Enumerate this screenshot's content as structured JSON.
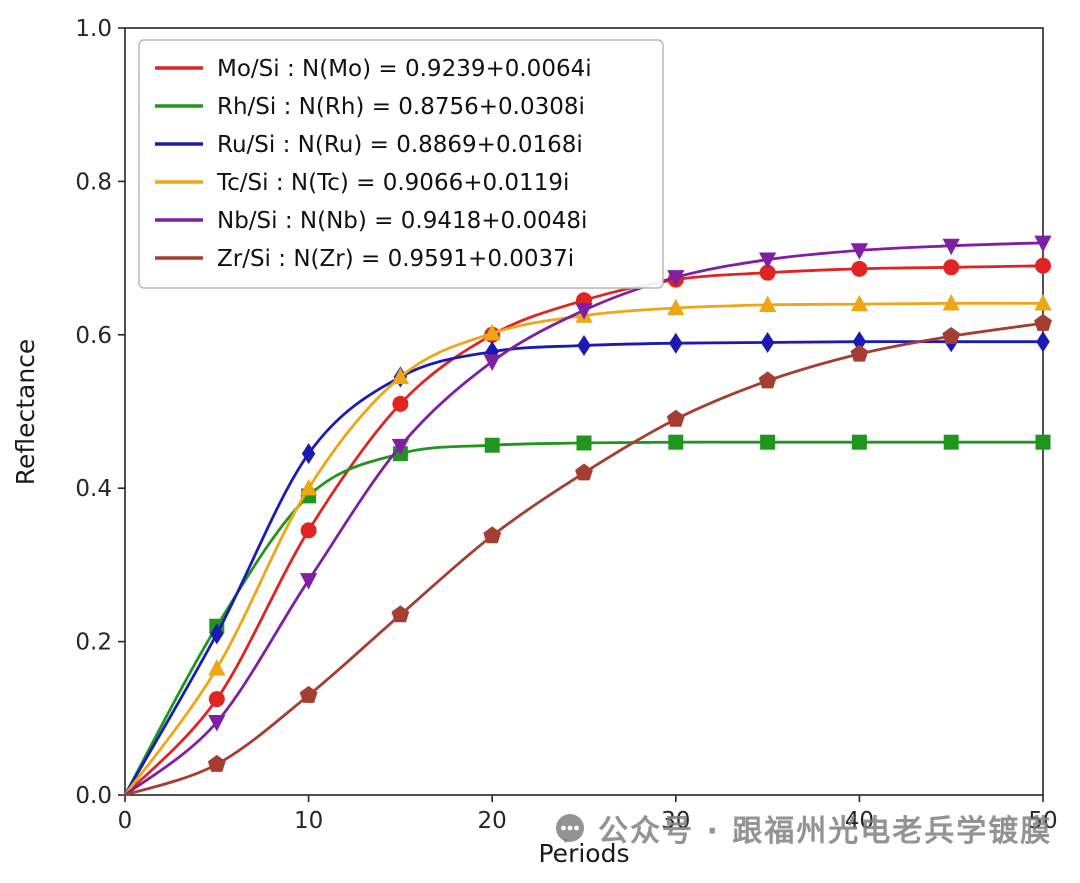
{
  "chart_data": {
    "type": "line",
    "title": "",
    "xlabel": "Periods",
    "ylabel": "Reflectance",
    "xlim": [
      0,
      50
    ],
    "ylim": [
      0.0,
      1.0
    ],
    "xticks": [
      "0",
      "10",
      "20",
      "30",
      "40",
      "50"
    ],
    "xtick_values": [
      0,
      10,
      20,
      30,
      40,
      50
    ],
    "yticks": [
      "0.0",
      "0.2",
      "0.4",
      "0.6",
      "0.8",
      "1.0"
    ],
    "ytick_values": [
      0.0,
      0.2,
      0.4,
      0.6,
      0.8,
      1.0
    ],
    "grid": false,
    "legend_position": "upper left",
    "x": [
      0,
      5,
      10,
      15,
      20,
      25,
      30,
      35,
      40,
      45,
      50
    ],
    "series": [
      {
        "name": "Mo/Si : N(Mo) = 0.9239+0.0064i",
        "color": "#e02421",
        "marker": "circle",
        "values": [
          0.0,
          0.125,
          0.345,
          0.51,
          0.6,
          0.645,
          0.672,
          0.681,
          0.686,
          0.688,
          0.69
        ]
      },
      {
        "name": "Rh/Si : N(Rh) = 0.8756+0.0308i",
        "color": "#21961f",
        "marker": "square",
        "values": [
          0.0,
          0.22,
          0.39,
          0.445,
          0.456,
          0.459,
          0.46,
          0.46,
          0.46,
          0.46,
          0.46
        ]
      },
      {
        "name": "Ru/Si : N(Ru) = 0.8869+0.0168i",
        "color": "#1b1bb3",
        "marker": "diamond",
        "values": [
          0.0,
          0.21,
          0.445,
          0.545,
          0.578,
          0.586,
          0.589,
          0.59,
          0.591,
          0.591,
          0.591
        ]
      },
      {
        "name": "Tc/Si : N(Tc) = 0.9066+0.0119i",
        "color": "#eda615",
        "marker": "triangle-up",
        "values": [
          0.0,
          0.165,
          0.4,
          0.545,
          0.602,
          0.625,
          0.635,
          0.639,
          0.64,
          0.641,
          0.641
        ]
      },
      {
        "name": "Nb/Si : N(Nb) = 0.9418+0.0048i",
        "color": "#7f1fa2",
        "marker": "triangle-down",
        "values": [
          0.0,
          0.095,
          0.28,
          0.455,
          0.565,
          0.632,
          0.675,
          0.698,
          0.71,
          0.716,
          0.72
        ]
      },
      {
        "name": "Zr/Si : N(Zr) = 0.9591+0.0037i",
        "color": "#a53e32",
        "marker": "pentagon",
        "values": [
          0.0,
          0.04,
          0.13,
          0.235,
          0.338,
          0.42,
          0.49,
          0.54,
          0.575,
          0.598,
          0.615
        ]
      }
    ]
  },
  "watermark": {
    "icon": "wechat-official-account-icon",
    "text": "公众号 · 跟福州光电老兵学镀膜"
  }
}
